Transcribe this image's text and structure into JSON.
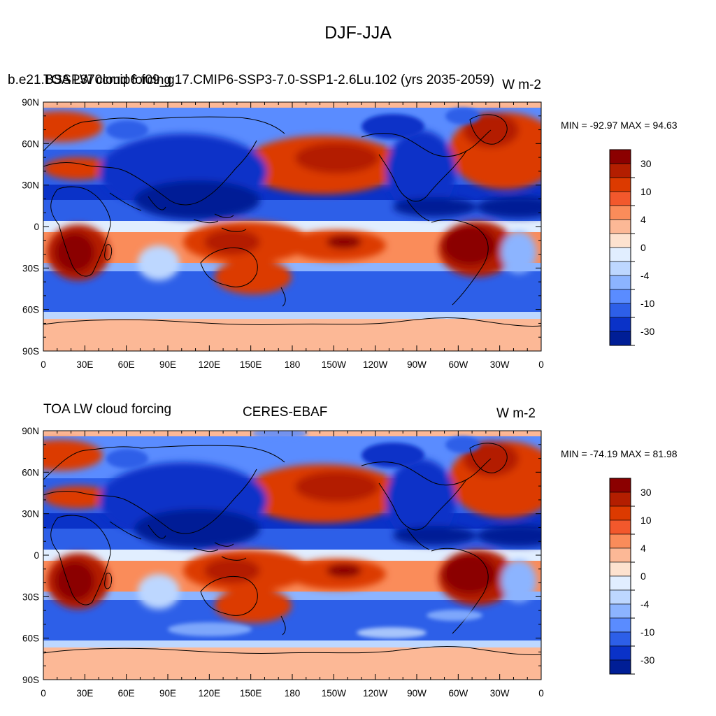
{
  "figure": {
    "title": "DJF-JJA"
  },
  "panels": [
    {
      "left_string": "b.e21.BSSP370cmip6.f09_g17.CMIP6-SSP3-7.0-SSP1-2.6Lu.102 (yrs 2035-2059)",
      "left_string_overlap": "TOA LW cloud forcing",
      "center_string": "",
      "right_string": "W m-2",
      "minmax": "MIN = -92.97 MAX =  94.63"
    },
    {
      "left_string": "TOA LW cloud forcing",
      "center_string": "CERES-EBAF",
      "right_string": "W m-2",
      "minmax": "MIN = -74.19 MAX =  81.98"
    }
  ],
  "axes": {
    "lat_labels": [
      "90N",
      "60N",
      "30N",
      "0",
      "30S",
      "60S",
      "90S"
    ],
    "lon_labels": [
      "0",
      "30E",
      "60E",
      "90E",
      "120E",
      "150E",
      "180",
      "150W",
      "120W",
      "90W",
      "60W",
      "30W",
      "0"
    ]
  },
  "colorbar": {
    "labels": [
      "30",
      "10",
      "4",
      "0",
      "-4",
      "-10",
      "-30"
    ],
    "colors": [
      "#8b0000",
      "#b31e00",
      "#dc3a00",
      "#f2582c",
      "#fa8c5a",
      "#fcb896",
      "#fde2cf",
      "#e1eeff",
      "#bdd7ff",
      "#8cb4ff",
      "#5a8cff",
      "#2d5fe8",
      "#0a32c8",
      "#001e96"
    ]
  },
  "chart_data": {
    "type": "heatmap",
    "title": "DJF-JJA",
    "variable": "TOA LW cloud forcing",
    "units": "W m-2",
    "x_range": [
      0,
      360
    ],
    "y_range": [
      -90,
      90
    ],
    "contour_levels": [
      -40,
      -30,
      -20,
      -10,
      -6,
      -4,
      -2,
      0,
      2,
      4,
      6,
      10,
      20,
      30,
      40
    ],
    "fields": [
      {
        "name": "b.e21.BSSP370cmip6.f09_g17.CMIP6-SSP3-7.0-SSP1-2.6Lu.102 (yrs 2035-2059)",
        "min": -92.97,
        "max": 94.63
      },
      {
        "name": "CERES-EBAF",
        "min": -74.19,
        "max": 81.98
      }
    ]
  }
}
